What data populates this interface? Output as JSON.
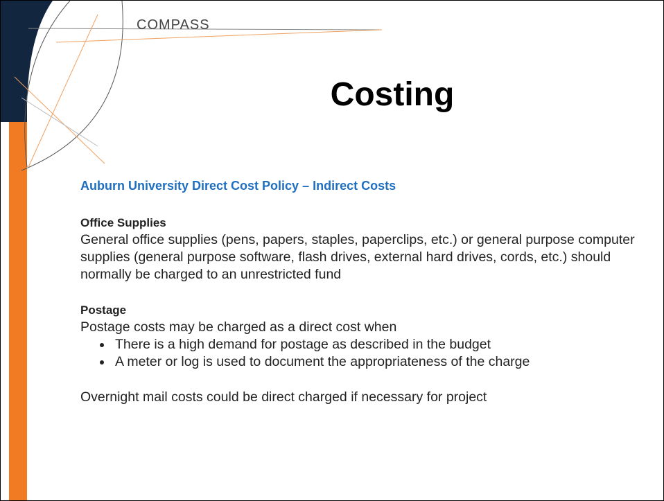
{
  "logo": "COMPASS",
  "title": "Costing",
  "subtitle": "Auburn University Direct Cost Policy – Indirect Costs",
  "sections": [
    {
      "heading": "Office Supplies",
      "body": "General office supplies (pens, papers, staples, paperclips, etc.) or general purpose computer supplies (general purpose software, flash drives, external hard drives, cords, etc.) should normally be charged to an unrestricted fund",
      "bullets": []
    },
    {
      "heading": "Postage",
      "body": "Postage costs may be charged as a direct cost when",
      "bullets": [
        "There is a high demand for postage as described in the budget",
        "A meter or log is used to document the appropriateness of the charge"
      ]
    }
  ],
  "footer": "Overnight mail costs could be direct charged if necessary for project"
}
